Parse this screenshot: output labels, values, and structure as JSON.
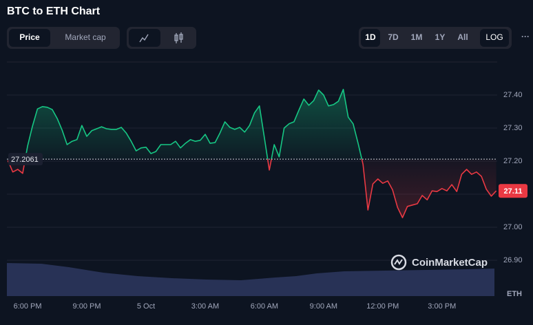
{
  "header": {
    "title": "BTC to ETH Chart"
  },
  "tabs": [
    "Price",
    "Market cap"
  ],
  "ranges": [
    "1D",
    "7D",
    "1M",
    "1Y",
    "All"
  ],
  "log_button": "LOG",
  "more_button": "···",
  "watermark": "CoinMarketCap",
  "chart_data": {
    "type": "line",
    "x": [
      17,
      17.25,
      17.5,
      17.75,
      18,
      18.25,
      18.5,
      18.75,
      19,
      19.25,
      19.5,
      19.75,
      20,
      20.25,
      20.5,
      20.75,
      21,
      21.25,
      21.5,
      21.75,
      22,
      22.25,
      22.5,
      22.75,
      23,
      23.25,
      23.5,
      23.75,
      24,
      24.25,
      24.5,
      24.75,
      25,
      25.25,
      25.5,
      25.75,
      26,
      26.25,
      26.5,
      26.75,
      27,
      27.25,
      27.5,
      27.75,
      28,
      28.25,
      28.5,
      28.75,
      29,
      29.25,
      29.5,
      29.75,
      30,
      30.25,
      30.5,
      30.75,
      31,
      31.25,
      31.5,
      31.75,
      32,
      32.25,
      32.5,
      32.75,
      33,
      33.25,
      33.5,
      33.75,
      34,
      34.25,
      34.5,
      34.75,
      35,
      35.25,
      35.5,
      35.75,
      36,
      36.25,
      36.5,
      36.75,
      37,
      37.25,
      37.5,
      37.75,
      38,
      38.25,
      38.5,
      38.75,
      39,
      39.25,
      39.5,
      39.75,
      40,
      40.25,
      40.5,
      40.75,
      41,
      41.25,
      41.5,
      41.75
    ],
    "series": [
      {
        "name": "Price",
        "values": [
          27.202,
          27.167,
          27.175,
          27.163,
          27.246,
          27.306,
          27.358,
          27.365,
          27.363,
          27.356,
          27.329,
          27.294,
          27.25,
          27.26,
          27.265,
          27.308,
          27.275,
          27.292,
          27.298,
          27.304,
          27.298,
          27.296,
          27.296,
          27.302,
          27.285,
          27.26,
          27.231,
          27.24,
          27.242,
          27.223,
          27.229,
          27.25,
          27.25,
          27.25,
          27.26,
          27.24,
          27.254,
          27.265,
          27.26,
          27.263,
          27.281,
          27.254,
          27.256,
          27.285,
          27.319,
          27.302,
          27.296,
          27.302,
          27.288,
          27.308,
          27.346,
          27.367,
          27.271,
          27.173,
          27.25,
          27.213,
          27.3,
          27.313,
          27.319,
          27.354,
          27.388,
          27.369,
          27.383,
          27.415,
          27.4,
          27.367,
          27.371,
          27.381,
          27.417,
          27.333,
          27.313,
          27.254,
          27.19,
          27.052,
          27.131,
          27.146,
          27.133,
          27.14,
          27.113,
          27.06,
          27.029,
          27.063,
          27.067,
          27.071,
          27.096,
          27.083,
          27.11,
          27.108,
          27.117,
          27.11,
          27.129,
          27.108,
          27.16,
          27.175,
          27.16,
          27.167,
          27.154,
          27.115,
          27.094,
          27.11
        ]
      }
    ],
    "baseline": 27.2061,
    "last_price": 27.11,
    "up_color": "#16c784",
    "down_color": "#ea3943",
    "y_unit": "ETH",
    "xlim": [
      16.95,
      41.8
    ],
    "xticks": [
      {
        "value": 18,
        "label": "6:00 PM"
      },
      {
        "value": 21,
        "label": "9:00 PM"
      },
      {
        "value": 24,
        "label": "5 Oct"
      },
      {
        "value": 27,
        "label": "3:00 AM"
      },
      {
        "value": 30,
        "label": "6:00 AM"
      },
      {
        "value": 33,
        "label": "9:00 AM"
      },
      {
        "value": 36,
        "label": "12:00 PM"
      },
      {
        "value": 39,
        "label": "3:00 PM"
      }
    ],
    "ylim": [
      26.9,
      27.5
    ],
    "yticks": [
      {
        "value": 26.9,
        "label": "26.90"
      },
      {
        "value": 27.0,
        "label": "27.00"
      },
      {
        "value": 27.1,
        "label": "27.10"
      },
      {
        "value": 27.2,
        "label": "27.20"
      },
      {
        "value": 27.3,
        "label": "27.30"
      },
      {
        "value": 27.4,
        "label": "27.40"
      }
    ],
    "grid": true
  }
}
